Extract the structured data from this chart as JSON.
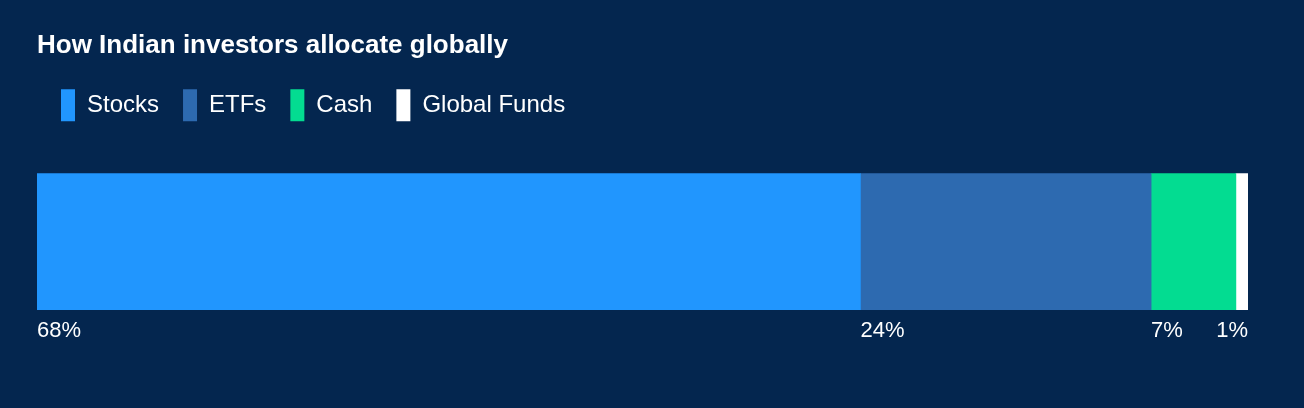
{
  "chart_data": {
    "type": "bar",
    "orientation": "horizontal",
    "stacked": true,
    "title": "How Indian investors allocate globally",
    "categories": [
      null
    ],
    "series": [
      {
        "name": "Stocks",
        "color": "#2196fe",
        "values": [
          68
        ],
        "value_labels": [
          "68%"
        ]
      },
      {
        "name": "ETFs",
        "color": "#2d6ab0",
        "values": [
          24
        ],
        "value_labels": [
          "24%"
        ]
      },
      {
        "name": "Cash",
        "color": "#03dc91",
        "values": [
          7
        ],
        "value_labels": [
          "7%"
        ]
      },
      {
        "name": "Global Funds",
        "color": "#ffffff",
        "values": [
          1
        ],
        "value_labels": [
          "1%"
        ]
      }
    ],
    "legend": "top left"
  }
}
